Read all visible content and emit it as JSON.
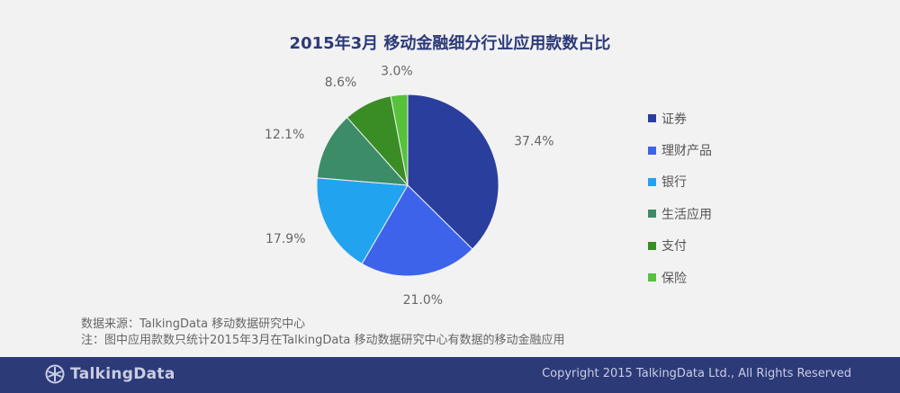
{
  "chart_data": {
    "type": "pie",
    "title": "2015年3月 移动金融细分行业应用款数占比",
    "categories": [
      "证券",
      "理财产品",
      "银行",
      "生活应用",
      "支付",
      "保险"
    ],
    "values": [
      37.4,
      21.0,
      17.9,
      12.1,
      8.6,
      3.0
    ],
    "value_labels": [
      "37.4%",
      "21.0%",
      "17.9%",
      "12.1%",
      "8.6%",
      "3.0%"
    ],
    "colors": [
      "#2a3f9d",
      "#3c63ea",
      "#22a3f0",
      "#3c8c68",
      "#3a8d24",
      "#55c23a"
    ],
    "legend_position": "right"
  },
  "notes": {
    "source": "数据来源：TalkingData 移动数据研究中心",
    "remark": "注：图中应用款数只统计2015年3月在TalkingData 移动数据研究中心有数据的移动金融应用"
  },
  "footer": {
    "logo_text": "TalkingData",
    "logo_icon": "talkingdata-logo-icon",
    "copyright": "Copyright 2015 TalkingData Ltd., All Rights Reserved"
  }
}
